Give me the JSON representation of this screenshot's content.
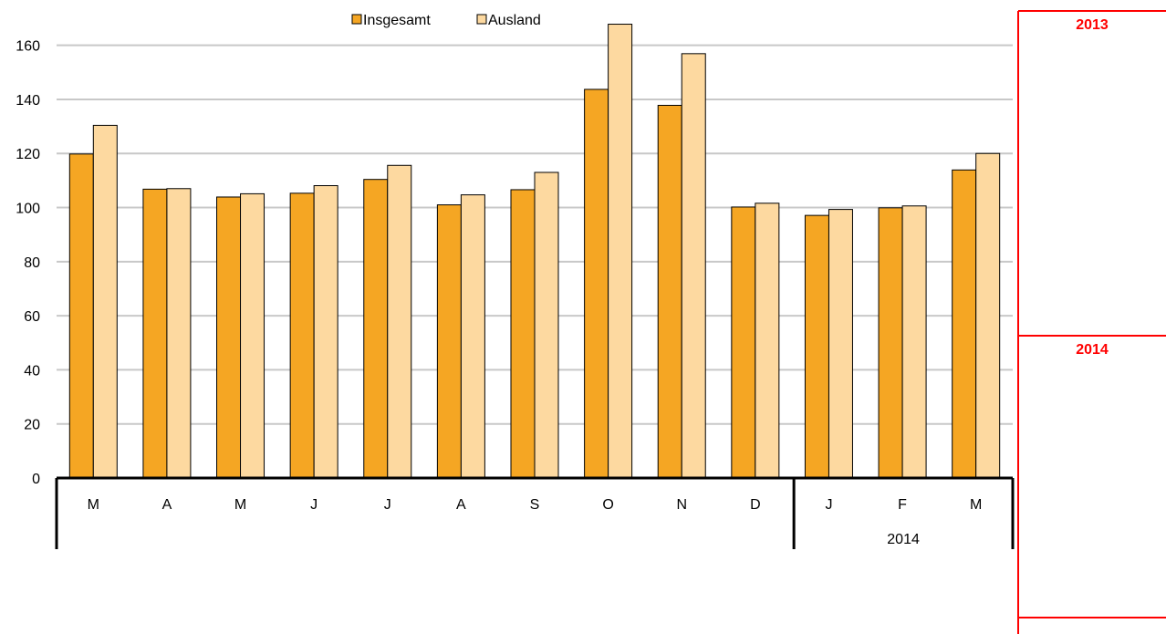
{
  "chart_data": {
    "type": "bar",
    "categories": [
      "M",
      "A",
      "M",
      "J",
      "J",
      "A",
      "S",
      "O",
      "N",
      "D",
      "J",
      "F",
      "M"
    ],
    "group_labels": [
      "",
      "2014"
    ],
    "series": [
      {
        "name": "Insgesamt",
        "values": [
          119.8,
          106.8,
          103.9,
          105.3,
          110.4,
          101.0,
          106.6,
          143.7,
          137.8,
          100.2,
          97.1,
          99.9,
          113.9
        ],
        "color": "#f5a623"
      },
      {
        "name": "Ausland",
        "values": [
          130.4,
          107.0,
          105.1,
          108.1,
          115.6,
          104.7,
          113.0,
          167.8,
          156.9,
          101.6,
          99.3,
          100.6,
          120.0
        ],
        "color": "#fdd9a0"
      }
    ],
    "y_ticks": [
      "0",
      "20",
      "40",
      "60",
      "80",
      "100",
      "120",
      "140",
      "160"
    ],
    "ylim": [
      0,
      170
    ],
    "grid": true,
    "legend_position": "top-center"
  },
  "side_panel": {
    "labels": [
      "2013",
      "2014"
    ],
    "color": "#ff0000"
  }
}
